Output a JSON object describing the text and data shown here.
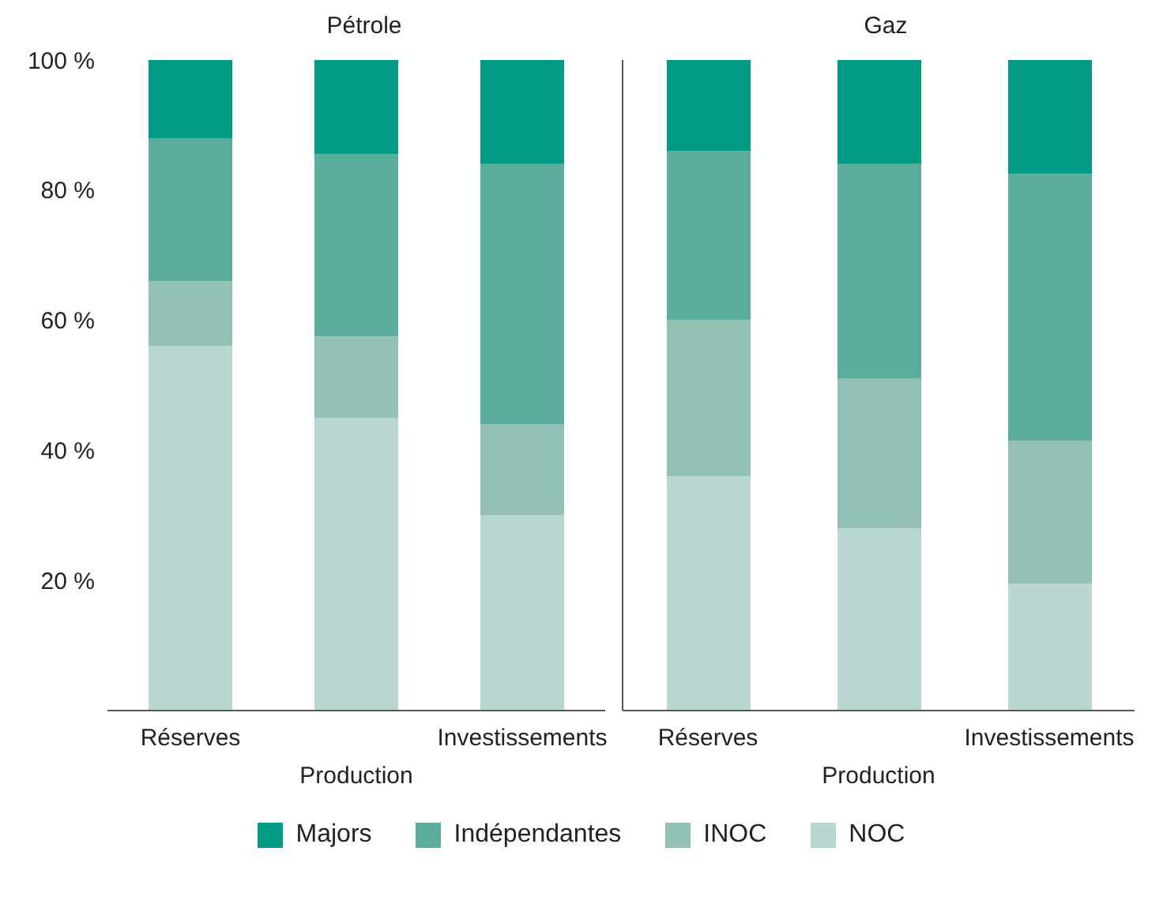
{
  "chart_data": [
    {
      "type": "bar",
      "title": "Pétrole",
      "stacked": true,
      "categories": [
        "Réserves",
        "Production",
        "Investissements"
      ],
      "ylim": [
        0,
        100
      ],
      "yticks": [
        {
          "value": 20,
          "label": "20 %"
        },
        {
          "value": 40,
          "label": "40 %"
        },
        {
          "value": 60,
          "label": "60 %"
        },
        {
          "value": 80,
          "label": "80 %"
        },
        {
          "value": 100,
          "label": "100 %"
        }
      ],
      "grid": false,
      "legend": "bottom",
      "series": [
        {
          "name": "NOC",
          "color": "#b9d6d0",
          "values": [
            56,
            45,
            30
          ]
        },
        {
          "name": "INOC",
          "color": "#93c0b4",
          "values": [
            10,
            12.5,
            14
          ]
        },
        {
          "name": "Indépendantes",
          "color": "#5aac9c",
          "values": [
            22,
            28,
            40
          ]
        },
        {
          "name": "Majors",
          "color": "#009b84",
          "values": [
            12,
            14.5,
            16
          ]
        }
      ]
    },
    {
      "type": "bar",
      "title": "Gaz",
      "stacked": true,
      "categories": [
        "Réserves",
        "Production",
        "Investissements"
      ],
      "ylim": [
        0,
        100
      ],
      "grid": false,
      "tick_labels": "x",
      "series": [
        {
          "color": "#b9d6d0",
          "values": [
            36,
            28,
            19.5
          ]
        },
        {
          "color": "#93c0b4",
          "values": [
            24,
            23,
            22
          ]
        },
        {
          "color": "#5aac9c",
          "values": [
            26,
            33,
            41
          ]
        },
        {
          "color": "#009b84",
          "values": [
            14,
            16,
            17.5
          ]
        }
      ]
    }
  ]
}
